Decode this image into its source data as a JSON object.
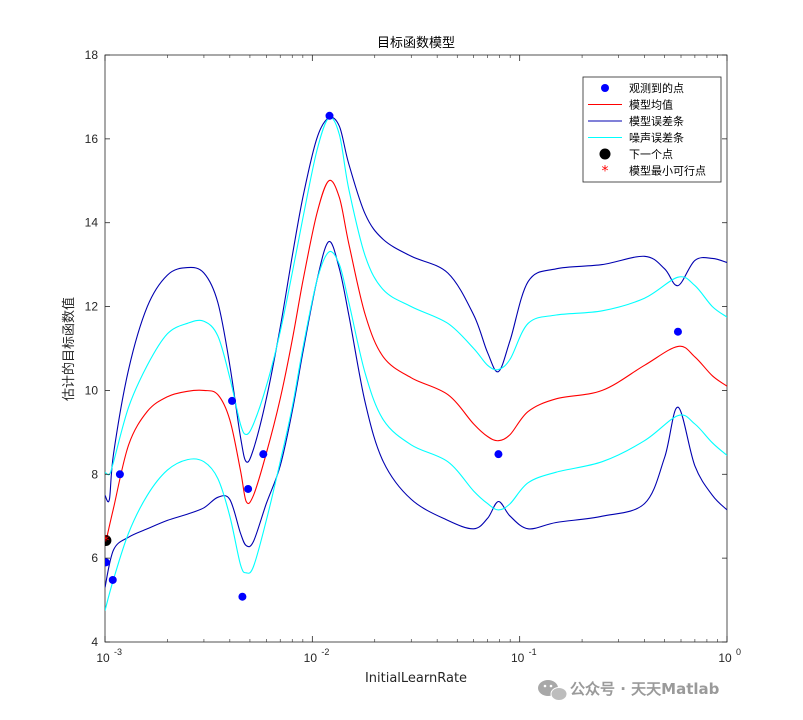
{
  "chart_data": {
    "type": "line",
    "title": "目标函数模型",
    "xlabel": "InitialLearnRate",
    "ylabel": "估计的目标函数值",
    "xscale": "log",
    "xlim": [
      0.001,
      1
    ],
    "ylim": [
      4,
      18
    ],
    "x_ticks": [
      0.001,
      0.01,
      0.1,
      1
    ],
    "x_tick_labels": [
      [
        "10",
        "-3"
      ],
      [
        "10",
        "-2"
      ],
      [
        "10",
        "-1"
      ],
      [
        "10",
        "0"
      ]
    ],
    "y_ticks": [
      4,
      6,
      8,
      10,
      12,
      14,
      16,
      18
    ],
    "legend_position": "top-right",
    "series": [
      {
        "name": "观测到的点",
        "kind": "markers",
        "color": "#0000ff",
        "points": [
          [
            0.00101,
            5.9
          ],
          [
            0.00109,
            5.48
          ],
          [
            0.00118,
            8.0
          ],
          [
            0.0041,
            9.75
          ],
          [
            0.0046,
            5.08
          ],
          [
            0.0049,
            7.65
          ],
          [
            0.0058,
            8.48
          ],
          [
            0.0121,
            16.55
          ],
          [
            0.079,
            8.48
          ],
          [
            0.58,
            11.4
          ]
        ]
      },
      {
        "name": "模型均值",
        "kind": "line",
        "color": "#ff0000",
        "points": [
          [
            0.001,
            6.3
          ],
          [
            0.0011,
            7.2
          ],
          [
            0.0013,
            8.7
          ],
          [
            0.0016,
            9.5
          ],
          [
            0.002,
            9.85
          ],
          [
            0.0025,
            9.98
          ],
          [
            0.003,
            10.0
          ],
          [
            0.0035,
            9.9
          ],
          [
            0.004,
            9.3
          ],
          [
            0.0045,
            8.1
          ],
          [
            0.0048,
            7.35
          ],
          [
            0.0052,
            7.5
          ],
          [
            0.006,
            8.5
          ],
          [
            0.007,
            9.8
          ],
          [
            0.008,
            11.2
          ],
          [
            0.009,
            12.6
          ],
          [
            0.0105,
            14.2
          ],
          [
            0.012,
            15.0
          ],
          [
            0.0135,
            14.6
          ],
          [
            0.015,
            13.5
          ],
          [
            0.018,
            11.8
          ],
          [
            0.022,
            10.8
          ],
          [
            0.03,
            10.3
          ],
          [
            0.045,
            9.9
          ],
          [
            0.06,
            9.2
          ],
          [
            0.07,
            8.9
          ],
          [
            0.079,
            8.8
          ],
          [
            0.09,
            8.95
          ],
          [
            0.11,
            9.5
          ],
          [
            0.15,
            9.8
          ],
          [
            0.25,
            10.0
          ],
          [
            0.4,
            10.6
          ],
          [
            0.58,
            11.05
          ],
          [
            0.7,
            10.8
          ],
          [
            0.85,
            10.35
          ],
          [
            1.0,
            10.1
          ]
        ]
      },
      {
        "name": "模型误差条",
        "kind": "band",
        "color": "#0000b0",
        "upper": [
          [
            0.001,
            7.5
          ],
          [
            0.00105,
            7.4
          ],
          [
            0.0011,
            8.5
          ],
          [
            0.0013,
            10.5
          ],
          [
            0.0016,
            12.0
          ],
          [
            0.002,
            12.75
          ],
          [
            0.0025,
            12.93
          ],
          [
            0.003,
            12.8
          ],
          [
            0.0035,
            12.1
          ],
          [
            0.004,
            10.6
          ],
          [
            0.0045,
            8.9
          ],
          [
            0.0048,
            8.3
          ],
          [
            0.0052,
            8.6
          ],
          [
            0.006,
            9.8
          ],
          [
            0.007,
            11.5
          ],
          [
            0.008,
            13.2
          ],
          [
            0.009,
            14.6
          ],
          [
            0.0105,
            16.0
          ],
          [
            0.012,
            16.5
          ],
          [
            0.0135,
            16.3
          ],
          [
            0.015,
            15.4
          ],
          [
            0.018,
            14.2
          ],
          [
            0.022,
            13.6
          ],
          [
            0.03,
            13.2
          ],
          [
            0.045,
            12.8
          ],
          [
            0.06,
            11.8
          ],
          [
            0.07,
            10.9
          ],
          [
            0.079,
            10.45
          ],
          [
            0.09,
            11.2
          ],
          [
            0.11,
            12.6
          ],
          [
            0.15,
            12.9
          ],
          [
            0.25,
            13.0
          ],
          [
            0.4,
            13.2
          ],
          [
            0.5,
            12.9
          ],
          [
            0.58,
            12.5
          ],
          [
            0.7,
            13.1
          ],
          [
            0.85,
            13.15
          ],
          [
            1.0,
            13.05
          ]
        ],
        "lower": [
          [
            0.001,
            5.3
          ],
          [
            0.0011,
            6.2
          ],
          [
            0.0013,
            6.5
          ],
          [
            0.0016,
            6.7
          ],
          [
            0.002,
            6.9
          ],
          [
            0.0025,
            7.05
          ],
          [
            0.003,
            7.2
          ],
          [
            0.0035,
            7.45
          ],
          [
            0.004,
            7.4
          ],
          [
            0.0045,
            6.6
          ],
          [
            0.0048,
            6.3
          ],
          [
            0.0052,
            6.4
          ],
          [
            0.006,
            7.3
          ],
          [
            0.007,
            8.2
          ],
          [
            0.008,
            9.5
          ],
          [
            0.009,
            10.9
          ],
          [
            0.0105,
            12.6
          ],
          [
            0.012,
            13.55
          ],
          [
            0.0135,
            12.9
          ],
          [
            0.015,
            11.8
          ],
          [
            0.018,
            9.7
          ],
          [
            0.022,
            8.3
          ],
          [
            0.03,
            7.4
          ],
          [
            0.045,
            6.9
          ],
          [
            0.06,
            6.7
          ],
          [
            0.07,
            6.95
          ],
          [
            0.079,
            7.35
          ],
          [
            0.09,
            7.0
          ],
          [
            0.11,
            6.7
          ],
          [
            0.15,
            6.85
          ],
          [
            0.25,
            7.0
          ],
          [
            0.4,
            7.3
          ],
          [
            0.5,
            8.4
          ],
          [
            0.58,
            9.6
          ],
          [
            0.7,
            8.2
          ],
          [
            0.85,
            7.5
          ],
          [
            1.0,
            7.15
          ]
        ]
      },
      {
        "name": "噪声误差条",
        "kind": "band",
        "color": "#00ffff",
        "upper": [
          [
            0.001,
            8.05
          ],
          [
            0.00105,
            8.0
          ],
          [
            0.0011,
            8.3
          ],
          [
            0.0013,
            9.6
          ],
          [
            0.0016,
            10.6
          ],
          [
            0.002,
            11.35
          ],
          [
            0.0025,
            11.6
          ],
          [
            0.003,
            11.65
          ],
          [
            0.0035,
            11.3
          ],
          [
            0.004,
            10.3
          ],
          [
            0.0045,
            9.2
          ],
          [
            0.0048,
            8.95
          ],
          [
            0.0052,
            9.2
          ],
          [
            0.006,
            10.1
          ],
          [
            0.007,
            11.4
          ],
          [
            0.008,
            12.8
          ],
          [
            0.009,
            14.1
          ],
          [
            0.0105,
            15.7
          ],
          [
            0.012,
            16.5
          ],
          [
            0.0135,
            16.1
          ],
          [
            0.015,
            14.8
          ],
          [
            0.018,
            13.2
          ],
          [
            0.022,
            12.4
          ],
          [
            0.03,
            12.0
          ],
          [
            0.045,
            11.6
          ],
          [
            0.06,
            11.0
          ],
          [
            0.07,
            10.6
          ],
          [
            0.079,
            10.5
          ],
          [
            0.09,
            10.75
          ],
          [
            0.11,
            11.6
          ],
          [
            0.15,
            11.8
          ],
          [
            0.25,
            11.9
          ],
          [
            0.4,
            12.2
          ],
          [
            0.58,
            12.7
          ],
          [
            0.7,
            12.5
          ],
          [
            0.85,
            12.0
          ],
          [
            1.0,
            11.75
          ]
        ],
        "lower": [
          [
            0.001,
            4.75
          ],
          [
            0.0011,
            5.5
          ],
          [
            0.0013,
            6.6
          ],
          [
            0.0016,
            7.5
          ],
          [
            0.002,
            8.1
          ],
          [
            0.0025,
            8.35
          ],
          [
            0.003,
            8.3
          ],
          [
            0.0035,
            7.9
          ],
          [
            0.004,
            7.0
          ],
          [
            0.0045,
            5.85
          ],
          [
            0.0048,
            5.65
          ],
          [
            0.0052,
            5.8
          ],
          [
            0.006,
            6.9
          ],
          [
            0.007,
            8.3
          ],
          [
            0.008,
            9.6
          ],
          [
            0.009,
            11.0
          ],
          [
            0.0105,
            12.6
          ],
          [
            0.012,
            13.3
          ],
          [
            0.0135,
            13.0
          ],
          [
            0.015,
            12.1
          ],
          [
            0.018,
            10.4
          ],
          [
            0.022,
            9.3
          ],
          [
            0.03,
            8.7
          ],
          [
            0.045,
            8.3
          ],
          [
            0.06,
            7.6
          ],
          [
            0.07,
            7.3
          ],
          [
            0.079,
            7.15
          ],
          [
            0.09,
            7.3
          ],
          [
            0.11,
            7.8
          ],
          [
            0.15,
            8.05
          ],
          [
            0.25,
            8.3
          ],
          [
            0.4,
            8.8
          ],
          [
            0.58,
            9.4
          ],
          [
            0.7,
            9.2
          ],
          [
            0.85,
            8.75
          ],
          [
            1.0,
            8.45
          ]
        ]
      },
      {
        "name": "下一个点",
        "kind": "marker-big",
        "color": "#000000",
        "points": [
          [
            0.00101,
            6.42
          ]
        ]
      },
      {
        "name": "模型最小可行点",
        "kind": "star",
        "color": "#ff0000",
        "points": [
          [
            0.00101,
            6.42
          ]
        ]
      }
    ],
    "legend": [
      {
        "label": "观测到的点",
        "symbol": "dot",
        "color": "#0000ff"
      },
      {
        "label": "模型均值",
        "symbol": "line",
        "color": "#ff0000"
      },
      {
        "label": "模型误差条",
        "symbol": "line",
        "color": "#0000b0"
      },
      {
        "label": "噪声误差条",
        "symbol": "line",
        "color": "#00ffff"
      },
      {
        "label": "下一个点",
        "symbol": "bigdot",
        "color": "#000000"
      },
      {
        "label": "模型最小可行点",
        "symbol": "star",
        "color": "#ff0000"
      }
    ]
  },
  "watermark": {
    "text": "公众号 · 天天Matlab",
    "icon": "wechat-icon"
  }
}
